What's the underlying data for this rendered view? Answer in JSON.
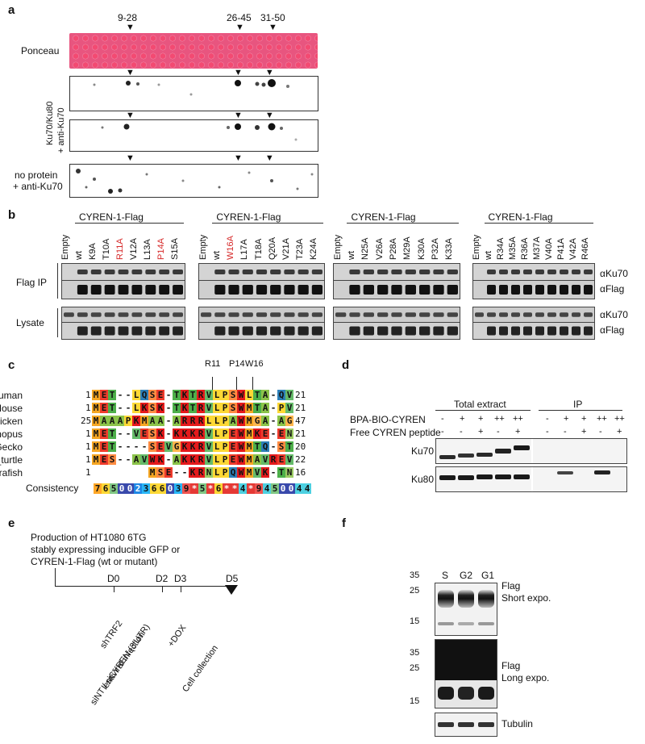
{
  "panels": {
    "a": "a",
    "b": "b",
    "c": "c",
    "d": "d",
    "e": "e",
    "f": "f"
  },
  "panel_a": {
    "peptide_markers": [
      "9-28",
      "26-45",
      "31-50"
    ],
    "row_labels": {
      "ponceau": "Ponceau",
      "ku_label_line1": "Ku70/Ku80",
      "ku_label_line2": "+ anti-Ku70",
      "noprot_line1": "no protein",
      "noprot_line2": "+ anti-Ku70"
    }
  },
  "panel_b": {
    "construct": "CYREN-1-Flag",
    "groups": [
      {
        "lanes": [
          "Empty",
          "wt",
          "K9A",
          "T10A",
          "R11A",
          "V12A",
          "L13A",
          "P14A",
          "S15A"
        ],
        "red": [
          "R11A",
          "P14A"
        ]
      },
      {
        "lanes": [
          "Empty",
          "wt",
          "W16A",
          "L17A",
          "T18A",
          "Q20A",
          "V21A",
          "T23A",
          "K24A"
        ],
        "red": [
          "W16A"
        ]
      },
      {
        "lanes": [
          "Empty",
          "wt",
          "N25A",
          "V26A",
          "P28A",
          "M29A",
          "K30A",
          "P32A",
          "K33A"
        ],
        "red": []
      },
      {
        "lanes": [
          "Empty",
          "wt",
          "R34A",
          "M35A",
          "R36A",
          "M37A",
          "V40A",
          "P41A",
          "V42A",
          "R46A"
        ],
        "red": []
      }
    ],
    "row_labels": {
      "flag_ip": "Flag IP",
      "lysate": "Lysate"
    },
    "right_labels": [
      "αKu70",
      "αFlag",
      "αKu70",
      "αFlag"
    ]
  },
  "panel_c": {
    "residue_markers": [
      "R11",
      "P14",
      "W16"
    ],
    "species": [
      {
        "name": "Human",
        "start": "1",
        "seq": "MET--LQSE-TKTRVLPSWLTA-QV",
        "end": "21"
      },
      {
        "name": "Mouse",
        "start": "1",
        "seq": "MET--LKSK-TKTRVLPSWMTA-PV",
        "end": "21"
      },
      {
        "name": "Chicken",
        "start": "25",
        "seq": "MAAAPKMAA-ARRRLLPAWMGA-AG",
        "end": "47"
      },
      {
        "name": "Xenopus",
        "start": "1",
        "seq": "MET--VESK-KKKRVLPEWMKE-EN",
        "end": "21"
      },
      {
        "name": "Gecko",
        "start": "1",
        "seq": "MET----SEVGKKRVLPEWMTQ-ST",
        "end": "20"
      },
      {
        "name": "Sea_turtle",
        "start": "1",
        "seq": "MES--AVWK-AKKRVLPEWMAVREV",
        "end": "22"
      },
      {
        "name": "Zebrafish",
        "start": "1",
        "seq": "MSE--KRNLPQWMVK-TN",
        "end": "16"
      }
    ],
    "consistency_label": "Consistency",
    "consistency": "765002366039*5*6**4*9450044"
  },
  "panel_d": {
    "headers": {
      "total": "Total extract",
      "ip": "IP"
    },
    "rows": [
      {
        "label": "BPA-BIO-CYREN",
        "values": [
          "-",
          "+",
          "+",
          "++",
          "++",
          "-",
          "+",
          "+",
          "++",
          "++"
        ]
      },
      {
        "label": "Free CYREN peptide",
        "values": [
          "-",
          "-",
          "+",
          "-",
          "+",
          "-",
          "-",
          "+",
          "-",
          "+"
        ]
      }
    ],
    "bands": [
      "Ku70",
      "Ku80"
    ]
  },
  "panel_e": {
    "text_lines": [
      "Production of HT1080 6TG",
      "stably expressing inducible GFP or",
      "CYREN-1-Flag (wt or mutant)"
    ],
    "timepoints": [
      "D0",
      "D2",
      "D3",
      "D5"
    ],
    "events": [
      "shTRF2",
      "lentiviral infection",
      "siNT / siCYREN (3'UTR)",
      "+DOX",
      "Cell collection"
    ]
  },
  "panel_f": {
    "lanes": [
      "S",
      "G2",
      "G1"
    ],
    "mw_top": [
      "35",
      "25",
      "15"
    ],
    "mw_bottom": [
      "35",
      "25",
      "15"
    ],
    "labels": {
      "flag": "Flag",
      "short": "Short expo.",
      "long": "Long expo.",
      "tubulin": "Tubulin"
    }
  }
}
